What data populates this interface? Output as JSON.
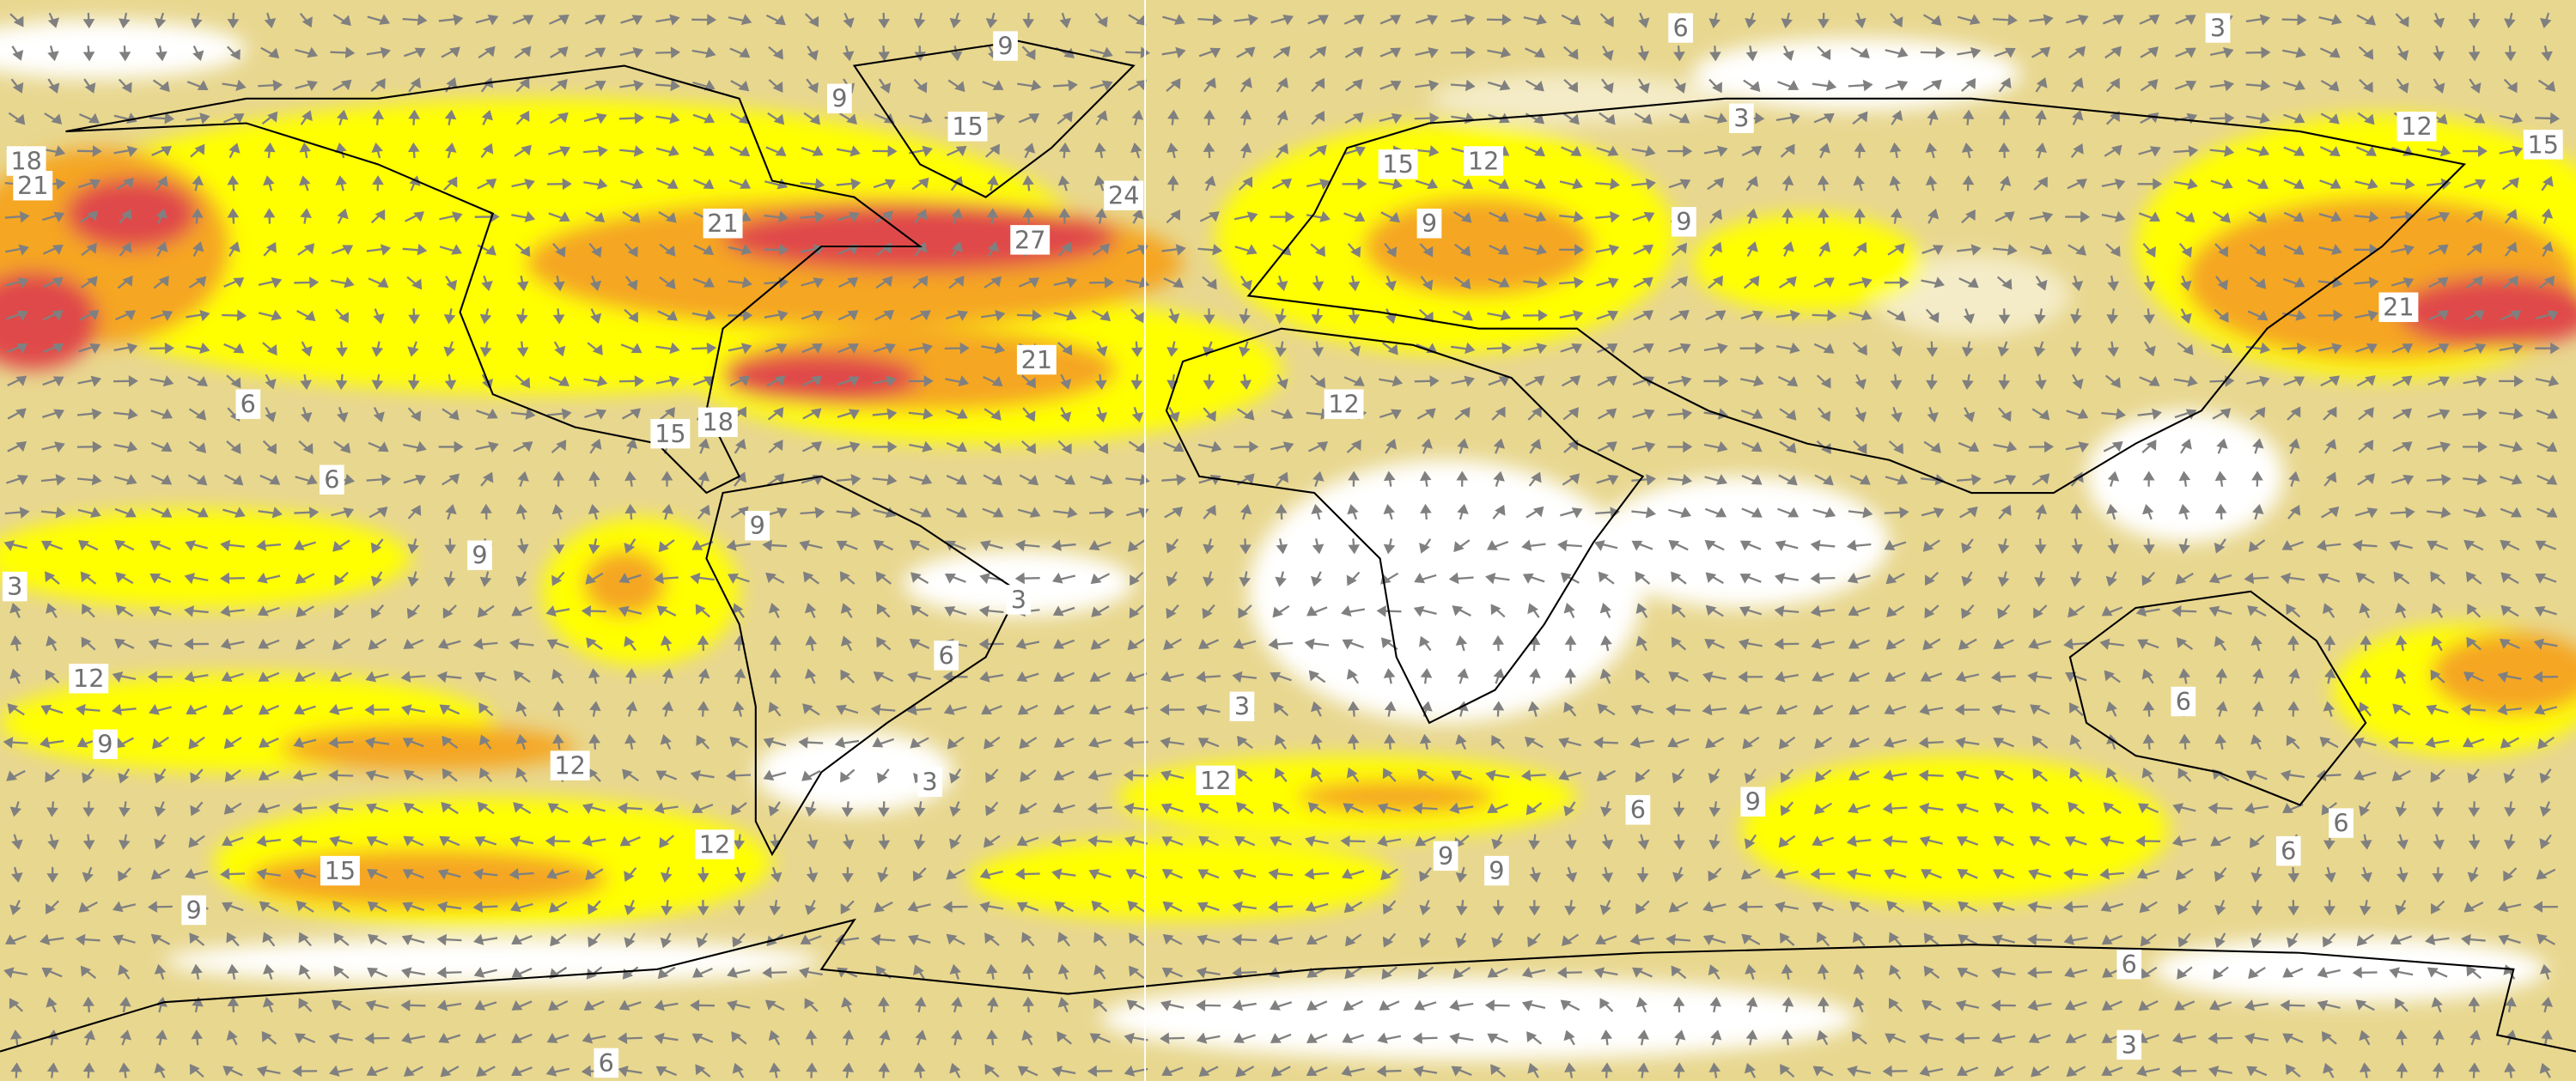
{
  "contour_labels": [
    6,
    3,
    9,
    9,
    15,
    3,
    12,
    15,
    18,
    21,
    15,
    12,
    24,
    21,
    9,
    9,
    27,
    21,
    21,
    6,
    12,
    15,
    18,
    6,
    9,
    9,
    3,
    3,
    6,
    12,
    3,
    6,
    9,
    12,
    12,
    3,
    6,
    9,
    12,
    9,
    9,
    15,
    6,
    6,
    9,
    6,
    3,
    6
  ]
}
